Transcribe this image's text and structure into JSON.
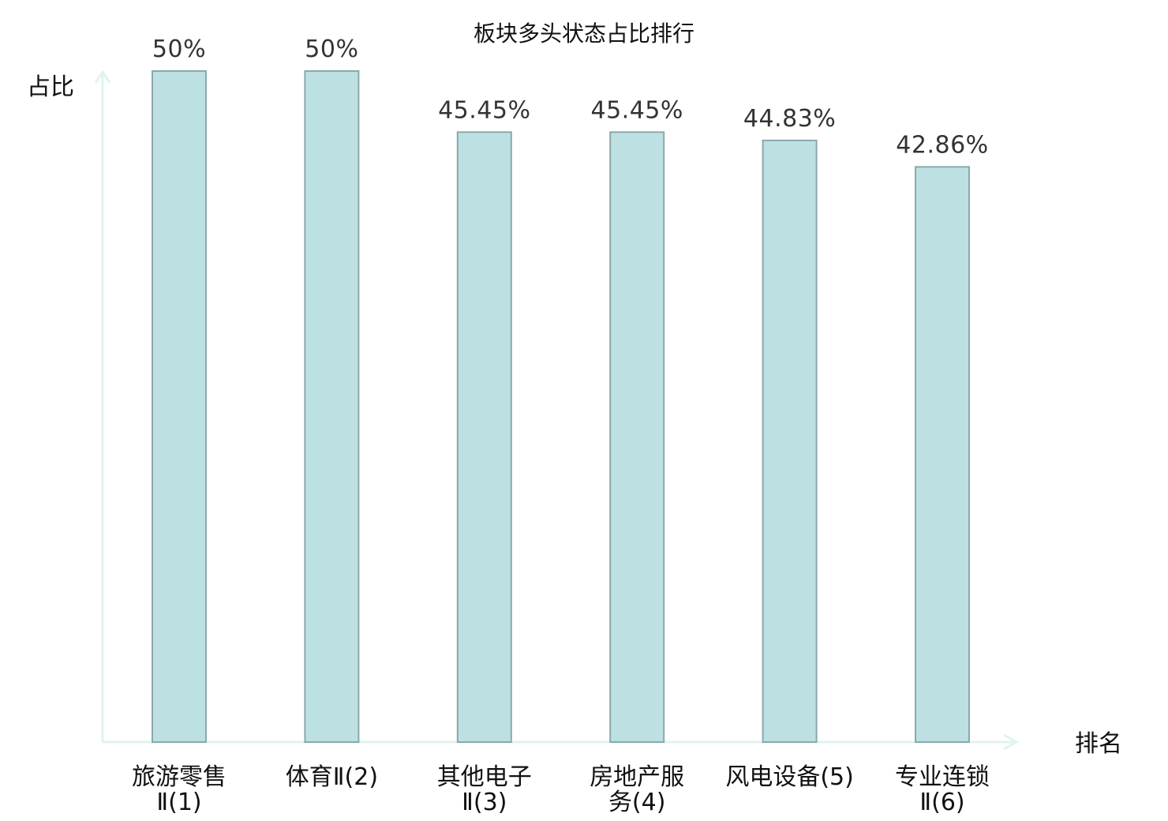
{
  "chart_data": {
    "type": "bar",
    "title": "板块多头状态占比排行",
    "ylabel": "占比",
    "xlabel": "排名",
    "ylim": [
      0,
      50
    ],
    "grid": false,
    "categories": [
      [
        "旅游零售",
        "Ⅱ(1)"
      ],
      [
        "体育Ⅱ(2)"
      ],
      [
        "其他电子",
        "Ⅱ(3)"
      ],
      [
        "房地产服",
        "务(4)"
      ],
      [
        "风电设备(5)"
      ],
      [
        "专业连锁",
        "Ⅱ(6)"
      ]
    ],
    "values": [
      50,
      50,
      45.45,
      45.45,
      44.83,
      42.86
    ],
    "value_labels": [
      "50%",
      "50%",
      "45.45%",
      "45.45%",
      "44.83%",
      "42.86%"
    ],
    "highlight_index": 5
  },
  "colors": {
    "bar_fill": "#bde1e3",
    "bar_stroke": "#8aa9ac",
    "axis": "#e0f3f1",
    "highlight_text": "#e8101a",
    "text": "#111111",
    "value_text": "#333333"
  }
}
